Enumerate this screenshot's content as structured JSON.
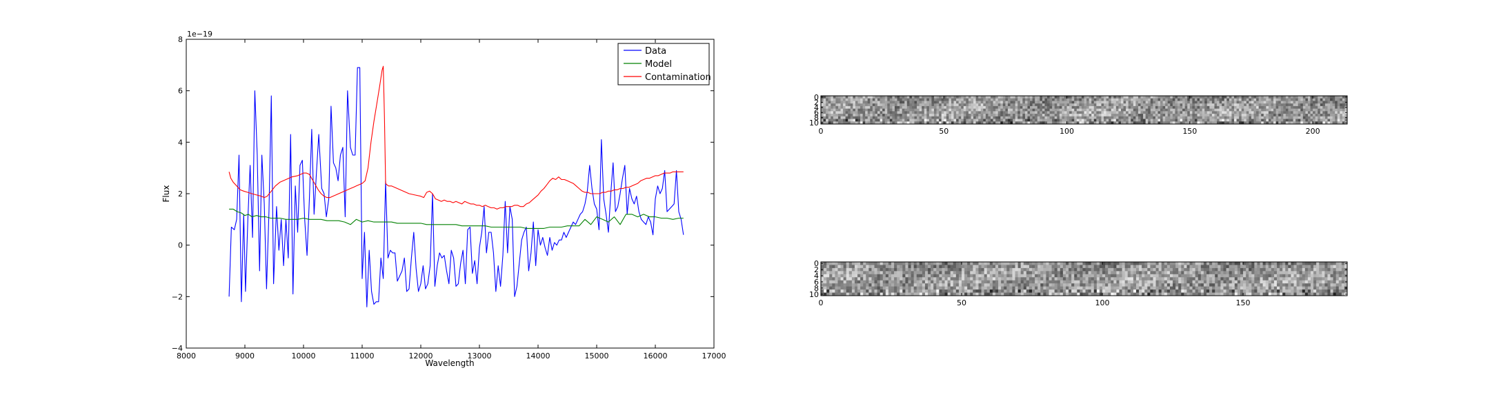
{
  "chart_data": [
    {
      "type": "line",
      "title": "",
      "xlabel": "Wavelength",
      "ylabel": "Flux",
      "offset_text": "1e−19",
      "xlim": [
        8000,
        17000
      ],
      "ylim": [
        -4,
        8
      ],
      "xticks": [
        "8000",
        "9000",
        "10000",
        "11000",
        "12000",
        "13000",
        "14000",
        "15000",
        "16000",
        "17000"
      ],
      "yticks": [
        "−4",
        "−2",
        "0",
        "2",
        "4",
        "6",
        "8"
      ],
      "grid": false,
      "legend_position": "top-right",
      "series": [
        {
          "name": "Data",
          "color": "#0000ff",
          "x": [
            8730,
            8770,
            8820,
            8860,
            8900,
            8940,
            8980,
            9010,
            9050,
            9090,
            9130,
            9170,
            9210,
            9250,
            9290,
            9330,
            9370,
            9410,
            9450,
            9490,
            9540,
            9580,
            9620,
            9660,
            9700,
            9740,
            9780,
            9820,
            9860,
            9900,
            9940,
            9980,
            10020,
            10060,
            10100,
            10140,
            10180,
            10220,
            10260,
            10310,
            10350,
            10390,
            10430,
            10470,
            10510,
            10550,
            10590,
            10630,
            10670,
            10710,
            10750,
            10800,
            10840,
            10880,
            10920,
            10960,
            11000,
            11040,
            11080,
            11120,
            11160,
            11200,
            11240,
            11280,
            11320,
            11360,
            11400,
            11440,
            11480,
            11520,
            11560,
            11600,
            11640,
            11680,
            11720,
            11760,
            11800,
            11840,
            11880,
            11920,
            11960,
            12000,
            12040,
            12080,
            12120,
            12160,
            12200,
            12240,
            12280,
            12320,
            12360,
            12400,
            12440,
            12480,
            12520,
            12560,
            12600,
            12640,
            12680,
            12720,
            12760,
            12800,
            12840,
            12880,
            12920,
            12960,
            13000,
            13040,
            13080,
            13120,
            13160,
            13200,
            13240,
            13280,
            13320,
            13360,
            13400,
            13440,
            13480,
            13520,
            13560,
            13600,
            13640,
            13680,
            13720,
            13760,
            13800,
            13840,
            13880,
            13920,
            13960,
            14000,
            14040,
            14080,
            14120,
            14160,
            14200,
            14240,
            14280,
            14320,
            14360,
            14400,
            14440,
            14480,
            14520,
            14560,
            14600,
            14640,
            14680,
            14720,
            14760,
            14800,
            14840,
            14880,
            14920,
            14960,
            15000,
            15040,
            15080,
            15120,
            15160,
            15200,
            15240,
            15280,
            15320,
            15360,
            15400,
            15440,
            15480,
            15520,
            15560,
            15600,
            15640,
            15680,
            15720,
            15760,
            15800,
            15840,
            15880,
            15920,
            15960,
            16000,
            16040,
            16080,
            16120,
            16160,
            16200,
            16240,
            16280,
            16320,
            16360,
            16400,
            16440,
            16480
          ],
          "y": [
            -2.0,
            0.7,
            0.6,
            1.0,
            3.5,
            -2.2,
            1.2,
            -1.8,
            1.0,
            3.1,
            0.3,
            6.0,
            3.5,
            -1.0,
            3.5,
            1.6,
            -1.7,
            1.3,
            5.8,
            -1.5,
            1.5,
            -0.2,
            1.0,
            -0.8,
            1.0,
            -0.5,
            4.3,
            -1.9,
            2.3,
            0.5,
            3.1,
            3.3,
            1.0,
            -0.4,
            1.8,
            4.5,
            1.2,
            2.8,
            4.3,
            2.2,
            2.0,
            1.1,
            1.8,
            5.4,
            3.2,
            3.0,
            2.5,
            3.5,
            3.8,
            1.1,
            6.0,
            3.8,
            3.5,
            3.5,
            6.9,
            6.9,
            -1.3,
            0.5,
            -2.4,
            -0.2,
            -1.8,
            -2.3,
            -2.2,
            -2.2,
            -0.5,
            -1.3,
            2.5,
            -0.5,
            -0.2,
            -0.3,
            -0.3,
            -1.4,
            -1.2,
            -1.0,
            -0.5,
            -1.8,
            -1.7,
            -0.5,
            0.5,
            -0.9,
            -1.8,
            -1.5,
            -0.8,
            -1.7,
            -1.5,
            -0.8,
            2.0,
            -1.6,
            -0.8,
            -0.3,
            -0.5,
            -0.4,
            -1.0,
            -1.5,
            -0.2,
            -0.5,
            -1.6,
            -1.5,
            -0.7,
            -0.2,
            -1.5,
            0.6,
            0.7,
            -1.1,
            -0.6,
            -1.5,
            -0.1,
            0.5,
            1.5,
            -0.3,
            0.5,
            0.5,
            -0.3,
            -1.8,
            -0.8,
            -1.6,
            -0.4,
            1.7,
            -0.3,
            1.5,
            1.0,
            -2.0,
            -1.6,
            -0.7,
            0.2,
            0.5,
            0.7,
            -1.0,
            -0.3,
            0.9,
            -0.8,
            0.6,
            0.0,
            0.3,
            -0.1,
            -0.4,
            0.3,
            -0.2,
            0.1,
            0.0,
            0.2,
            0.2,
            0.5,
            0.3,
            0.5,
            0.7,
            0.9,
            0.8,
            1.0,
            1.2,
            1.3,
            1.6,
            2.1,
            3.1,
            2.2,
            1.6,
            1.4,
            0.6,
            4.1,
            1.8,
            1.2,
            0.5,
            2.0,
            3.2,
            1.3,
            1.5,
            2.0,
            2.6,
            3.1,
            1.2,
            2.2,
            1.8,
            1.6,
            1.9,
            1.3,
            1.0,
            0.9,
            0.8,
            1.1,
            0.9,
            0.4,
            1.8,
            2.3,
            2.0,
            2.2,
            2.9,
            1.3,
            1.4,
            1.5,
            1.6,
            2.9,
            1.3,
            1.0,
            0.4
          ],
          "note_x_range": [
            8730,
            16480
          ]
        },
        {
          "name": "Model",
          "color": "#008000",
          "x": [
            8730,
            8800,
            8870,
            8940,
            9000,
            9060,
            9120,
            9200,
            9280,
            9360,
            9440,
            9520,
            9600,
            9700,
            9800,
            9900,
            10000,
            10100,
            10200,
            10300,
            10400,
            10500,
            10600,
            10700,
            10800,
            10900,
            11000,
            11100,
            11200,
            11300,
            11400,
            11500,
            11600,
            11700,
            11800,
            11900,
            12000,
            12100,
            12200,
            12300,
            12400,
            12500,
            12600,
            12700,
            12800,
            12900,
            13000,
            13100,
            13200,
            13300,
            13400,
            13500,
            13600,
            13700,
            13800,
            13900,
            14000,
            14100,
            14200,
            14300,
            14400,
            14500,
            14600,
            14700,
            14800,
            14900,
            15000,
            15100,
            15200,
            15300,
            15400,
            15500,
            15600,
            15700,
            15800,
            15900,
            16000,
            16100,
            16200,
            16300,
            16400,
            16480
          ],
          "y": [
            1.4,
            1.4,
            1.3,
            1.25,
            1.15,
            1.2,
            1.1,
            1.15,
            1.1,
            1.1,
            1.05,
            1.05,
            1.05,
            1.0,
            1.0,
            1.0,
            1.05,
            1.0,
            1.0,
            1.0,
            0.95,
            0.95,
            0.95,
            0.9,
            0.8,
            1.0,
            0.9,
            0.95,
            0.9,
            0.9,
            0.9,
            0.9,
            0.85,
            0.85,
            0.85,
            0.85,
            0.85,
            0.8,
            0.8,
            0.8,
            0.8,
            0.8,
            0.8,
            0.75,
            0.75,
            0.75,
            0.75,
            0.75,
            0.7,
            0.7,
            0.7,
            0.7,
            0.7,
            0.7,
            0.65,
            0.65,
            0.65,
            0.65,
            0.7,
            0.7,
            0.7,
            0.75,
            0.75,
            0.75,
            1.0,
            0.8,
            1.1,
            1.0,
            0.9,
            1.1,
            0.8,
            1.2,
            1.2,
            1.1,
            1.2,
            1.1,
            1.1,
            1.05,
            1.05,
            1.0,
            1.05,
            1.05
          ]
        },
        {
          "name": "Contamination",
          "color": "#ff0000",
          "x": [
            8730,
            8760,
            8800,
            8860,
            8920,
            8980,
            9050,
            9120,
            9200,
            9280,
            9330,
            9380,
            9450,
            9520,
            9600,
            9700,
            9800,
            9900,
            9950,
            10000,
            10050,
            10100,
            10150,
            10200,
            10250,
            10300,
            10350,
            10400,
            10450,
            10500,
            10550,
            10600,
            10650,
            10700,
            10750,
            10800,
            10850,
            10900,
            10950,
            11000,
            11050,
            11100,
            11150,
            11200,
            11250,
            11300,
            11340,
            11360,
            11380,
            11400,
            11420,
            11450,
            11500,
            11600,
            11700,
            11800,
            11900,
            12000,
            12050,
            12100,
            12150,
            12200,
            12250,
            12300,
            12350,
            12400,
            12450,
            12500,
            12550,
            12600,
            12650,
            12700,
            12750,
            12800,
            12850,
            12900,
            12950,
            13000,
            13050,
            13100,
            13150,
            13200,
            13250,
            13300,
            13350,
            13400,
            13450,
            13500,
            13550,
            13600,
            13650,
            13700,
            13750,
            13800,
            13850,
            13900,
            13950,
            14000,
            14050,
            14100,
            14150,
            14200,
            14250,
            14300,
            14350,
            14400,
            14450,
            14500,
            14550,
            14600,
            14650,
            14700,
            14750,
            14800,
            14850,
            14900,
            14950,
            15000,
            15050,
            15100,
            15150,
            15200,
            15250,
            15300,
            15350,
            15400,
            15450,
            15500,
            15550,
            15600,
            15650,
            15700,
            15750,
            15800,
            15850,
            15900,
            15950,
            16000,
            16050,
            16100,
            16150,
            16200,
            16250,
            16300,
            16350,
            16400,
            16450,
            16480
          ],
          "y": [
            2.85,
            2.6,
            2.45,
            2.3,
            2.15,
            2.1,
            2.05,
            2.0,
            1.95,
            1.9,
            1.85,
            1.9,
            2.1,
            2.3,
            2.45,
            2.55,
            2.65,
            2.7,
            2.75,
            2.8,
            2.8,
            2.75,
            2.55,
            2.35,
            2.15,
            2.0,
            1.9,
            1.85,
            1.85,
            1.9,
            1.95,
            2.0,
            2.05,
            2.1,
            2.15,
            2.2,
            2.25,
            2.3,
            2.35,
            2.4,
            2.5,
            3.0,
            4.0,
            4.8,
            5.5,
            6.2,
            6.8,
            6.95,
            5.0,
            2.4,
            2.35,
            2.3,
            2.3,
            2.2,
            2.1,
            2.0,
            1.95,
            1.9,
            1.85,
            2.05,
            2.1,
            2.0,
            1.8,
            1.75,
            1.7,
            1.75,
            1.7,
            1.7,
            1.65,
            1.7,
            1.65,
            1.6,
            1.7,
            1.65,
            1.6,
            1.6,
            1.55,
            1.55,
            1.5,
            1.55,
            1.5,
            1.45,
            1.45,
            1.4,
            1.45,
            1.45,
            1.5,
            1.5,
            1.5,
            1.55,
            1.55,
            1.5,
            1.5,
            1.6,
            1.65,
            1.75,
            1.85,
            1.95,
            2.1,
            2.2,
            2.35,
            2.5,
            2.6,
            2.55,
            2.65,
            2.55,
            2.55,
            2.5,
            2.45,
            2.4,
            2.3,
            2.2,
            2.1,
            2.05,
            2.05,
            2.0,
            2.0,
            2.0,
            2.0,
            2.05,
            2.05,
            2.1,
            2.1,
            2.15,
            2.15,
            2.2,
            2.2,
            2.25,
            2.25,
            2.3,
            2.35,
            2.4,
            2.5,
            2.55,
            2.6,
            2.6,
            2.65,
            2.7,
            2.7,
            2.75,
            2.8,
            2.8,
            2.8,
            2.85,
            2.85,
            2.85,
            2.85,
            2.85
          ]
        }
      ]
    },
    {
      "type": "heatmap",
      "title": "",
      "xticks": [
        "0",
        "50",
        "100",
        "150",
        "200"
      ],
      "yticks": [
        "0",
        "2",
        "4",
        "6",
        "8",
        "10"
      ],
      "xlim": [
        0,
        214
      ],
      "ylim": [
        11,
        0
      ],
      "colormap": "gray",
      "rows": 11,
      "cols": 214
    },
    {
      "type": "heatmap",
      "title": "",
      "xticks": [
        "0",
        "50",
        "100",
        "150"
      ],
      "yticks": [
        "0",
        "2",
        "4",
        "6",
        "8",
        "10"
      ],
      "xlim": [
        0,
        187
      ],
      "ylim": [
        11,
        0
      ],
      "colormap": "gray",
      "rows": 11,
      "cols": 187
    }
  ]
}
